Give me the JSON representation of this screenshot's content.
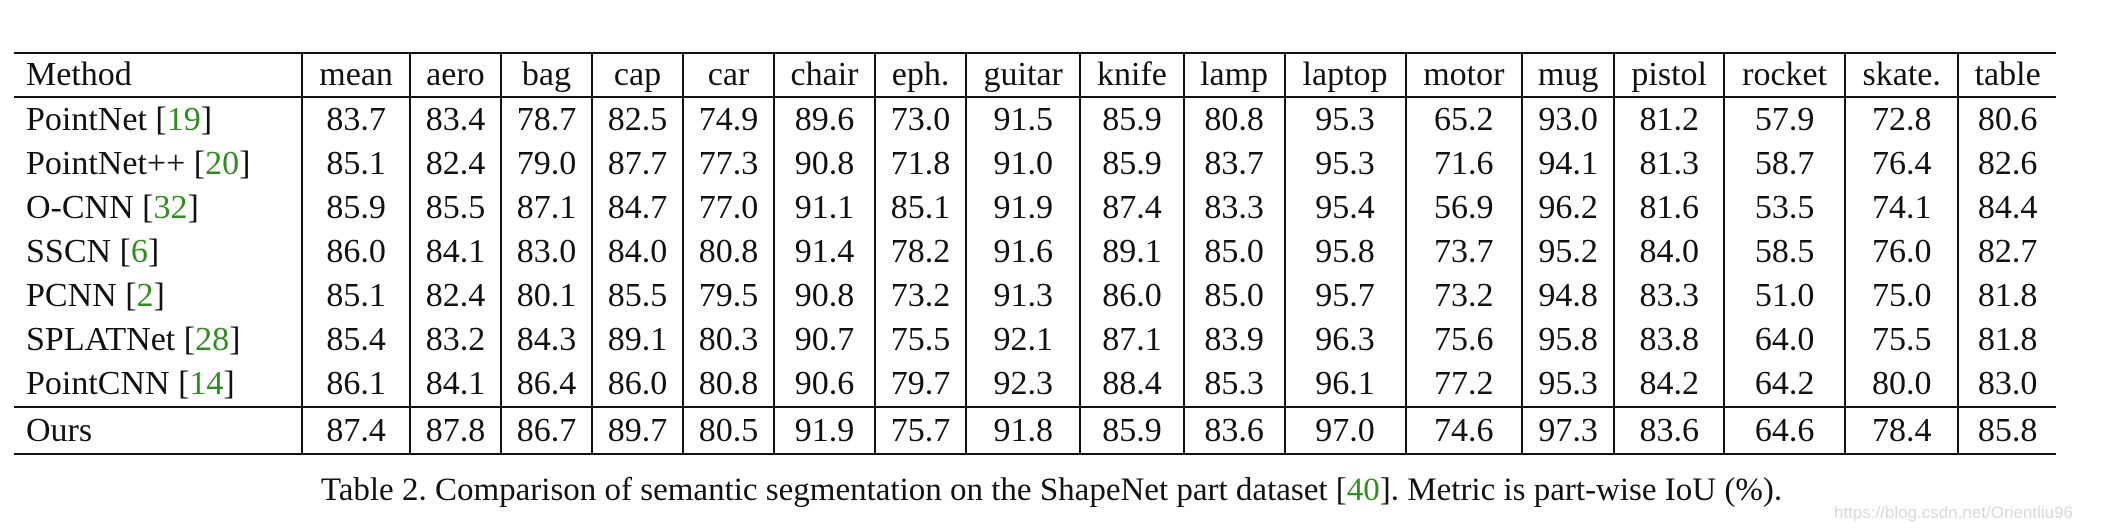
{
  "table": {
    "columns": [
      "Method",
      "mean",
      "aero",
      "bag",
      "cap",
      "car",
      "chair",
      "eph.",
      "guitar",
      "knife",
      "lamp",
      "laptop",
      "motor",
      "mug",
      "pistol",
      "rocket",
      "skate.",
      "table"
    ],
    "rows": [
      {
        "method": "PointNet",
        "ref": "19",
        "values": [
          "83.7",
          "83.4",
          "78.7",
          "82.5",
          "74.9",
          "89.6",
          "73.0",
          "91.5",
          "85.9",
          "80.8",
          "95.3",
          "65.2",
          "93.0",
          "81.2",
          "57.9",
          "72.8",
          "80.6"
        ],
        "bold": []
      },
      {
        "method": "PointNet++",
        "ref": "20",
        "values": [
          "85.1",
          "82.4",
          "79.0",
          "87.7",
          "77.3",
          "90.8",
          "71.8",
          "91.0",
          "85.9",
          "83.7",
          "95.3",
          "71.6",
          "94.1",
          "81.3",
          "58.7",
          "76.4",
          "82.6"
        ],
        "bold": []
      },
      {
        "method": "O-CNN",
        "ref": "32",
        "values": [
          "85.9",
          "85.5",
          "87.1",
          "84.7",
          "77.0",
          "91.1",
          "85.1",
          "91.9",
          "87.4",
          "83.3",
          "95.4",
          "56.9",
          "96.2",
          "81.6",
          "53.5",
          "74.1",
          "84.4"
        ],
        "bold": [
          2,
          6
        ]
      },
      {
        "method": "SSCN",
        "ref": "6",
        "values": [
          "86.0",
          "84.1",
          "83.0",
          "84.0",
          "80.8",
          "91.4",
          "78.2",
          "91.6",
          "89.1",
          "85.0",
          "95.8",
          "73.7",
          "95.2",
          "84.0",
          "58.5",
          "76.0",
          "82.7"
        ],
        "bold": [
          4,
          8
        ]
      },
      {
        "method": "PCNN",
        "ref": "2",
        "values": [
          "85.1",
          "82.4",
          "80.1",
          "85.5",
          "79.5",
          "90.8",
          "73.2",
          "91.3",
          "86.0",
          "85.0",
          "95.7",
          "73.2",
          "94.8",
          "83.3",
          "51.0",
          "75.0",
          "81.8"
        ],
        "bold": []
      },
      {
        "method": "SPLATNet",
        "ref": "28",
        "values": [
          "85.4",
          "83.2",
          "84.3",
          "89.1",
          "80.3",
          "90.7",
          "75.5",
          "92.1",
          "87.1",
          "83.9",
          "96.3",
          "75.6",
          "95.8",
          "83.8",
          "64.0",
          "75.5",
          "81.8"
        ],
        "bold": []
      },
      {
        "method": "PointCNN",
        "ref": "14",
        "values": [
          "86.1",
          "84.1",
          "86.4",
          "86.0",
          "80.8",
          "90.6",
          "79.7",
          "92.3",
          "88.4",
          "85.3",
          "96.1",
          "77.2",
          "95.3",
          "84.2",
          "64.2",
          "80.0",
          "83.0"
        ],
        "bold": [
          4,
          7,
          9,
          11,
          13,
          15
        ]
      }
    ],
    "ours": {
      "method": "Ours",
      "values": [
        "87.4",
        "87.8",
        "86.7",
        "89.7",
        "80.5",
        "91.9",
        "75.7",
        "91.8",
        "85.9",
        "83.6",
        "97.0",
        "74.6",
        "97.3",
        "83.6",
        "64.6",
        "78.4",
        "85.8"
      ],
      "bold": [
        0,
        1,
        3,
        5,
        10,
        12,
        14,
        16
      ]
    }
  },
  "caption": {
    "prefix": "Table 2. Comparison of semantic segmentation on the ShapeNet part dataset [",
    "ref": "40",
    "suffix": "]. Metric is part-wise IoU (%)."
  },
  "watermark": "https://blog.csdn.net/Orientliu96",
  "colors": {
    "reference": "#2f8f1e",
    "text": "#111111"
  }
}
